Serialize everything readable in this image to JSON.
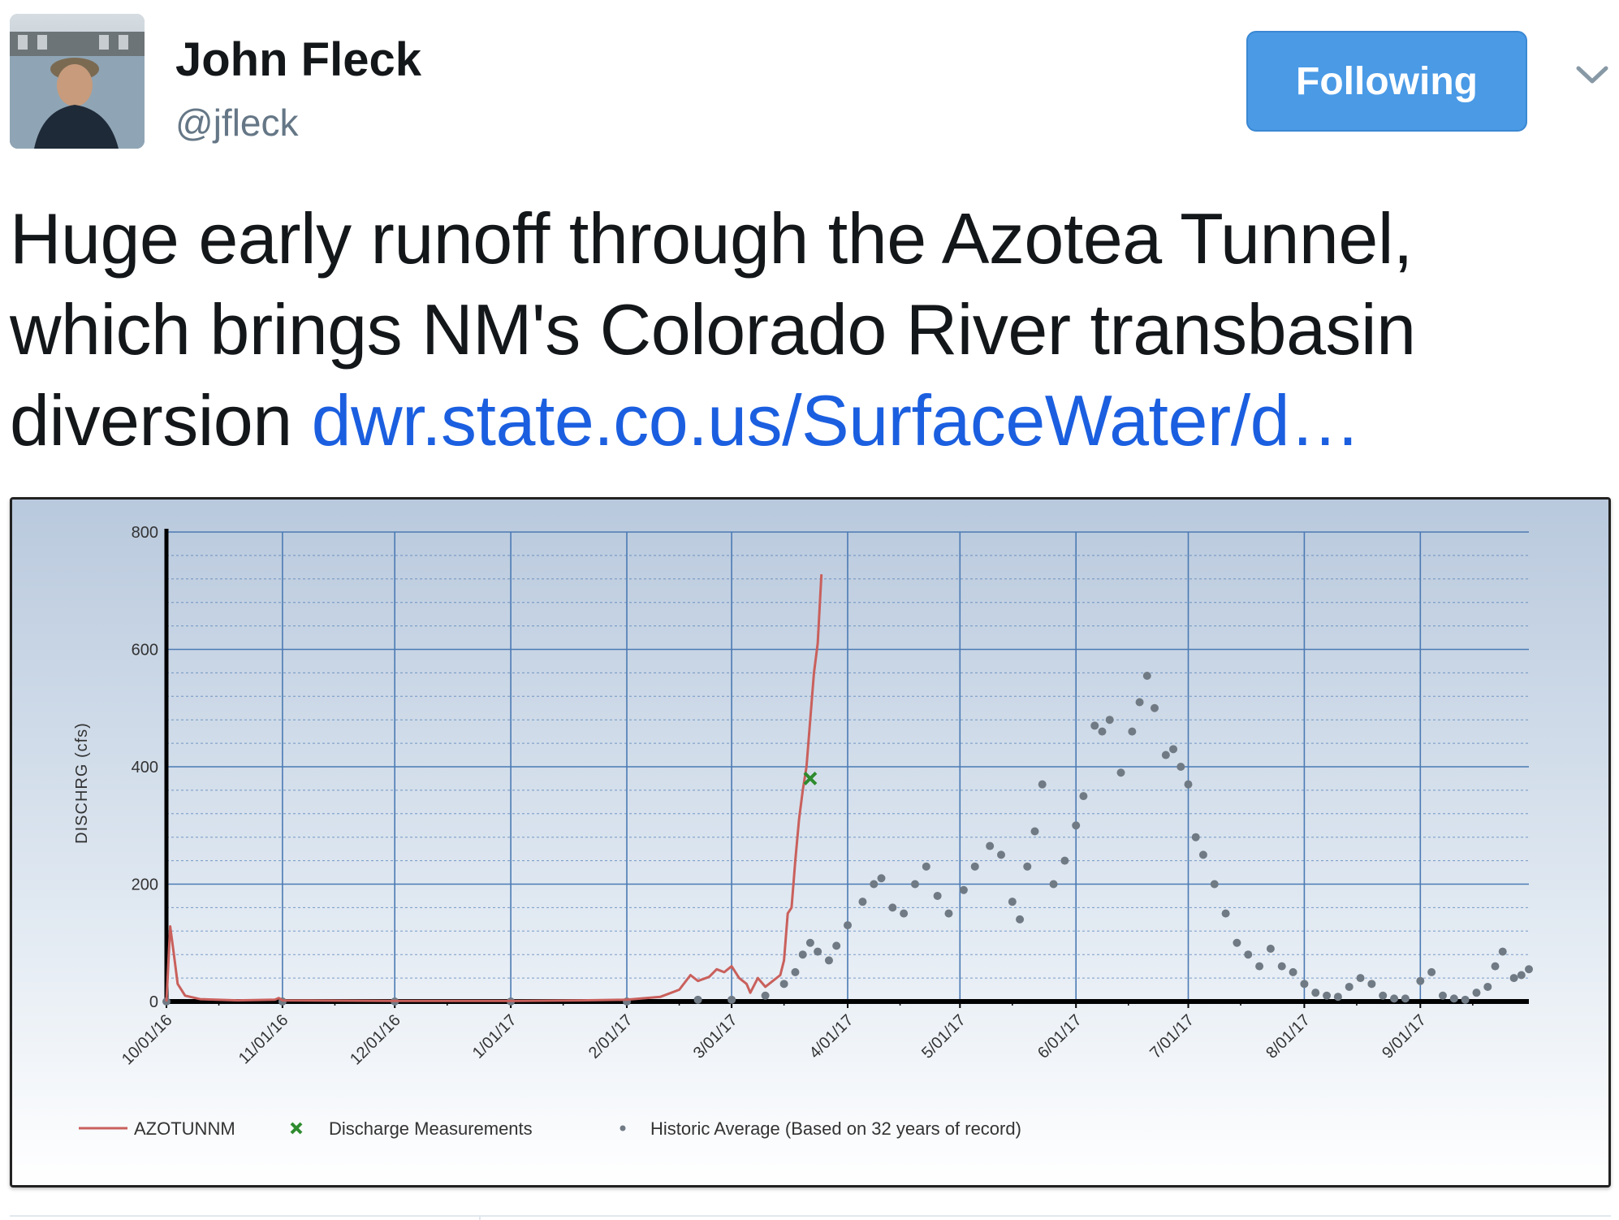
{
  "user": {
    "name": "John Fleck",
    "handle": "@jfleck",
    "avatar_icon": "avatar-photo"
  },
  "follow_button": {
    "label": "Following",
    "color": "#4a9ae6"
  },
  "menu_icon": "chevron-down-icon",
  "tweet": {
    "text": "Huge early runoff through the Azotea Tunnel, which brings NM's Colorado River transbasin diversion ",
    "link_text": "dwr.state.co.us/SurfaceWater/d…",
    "link_color": "#1b5fe0"
  },
  "chart_data": {
    "type": "line",
    "title": "",
    "xlabel": "",
    "ylabel": "DISCHRG (cfs)",
    "ylim": [
      0,
      800
    ],
    "yticks": [
      0,
      200,
      400,
      600,
      800
    ],
    "xlim": [
      "2016-10-01",
      "2017-09-30"
    ],
    "xticks": [
      "10/01/16",
      "11/01/16",
      "12/01/16",
      "1/01/17",
      "2/01/17",
      "3/01/17",
      "4/01/17",
      "5/01/17",
      "6/01/17",
      "7/01/17",
      "8/01/17",
      "9/01/17"
    ],
    "grid": true,
    "legend_position": "bottom",
    "colors": {
      "background_top": "#b9c9dd",
      "background_bottom": "#ffffff",
      "grid": "#4b7ab3",
      "azotunnm": "#c9605c",
      "measurement": "#2e8b2e",
      "historic": "#707a84"
    },
    "series": [
      {
        "name": "AZOTUNNM",
        "type": "line",
        "points": [
          [
            "2016-10-01",
            0
          ],
          [
            "2016-10-02",
            128
          ],
          [
            "2016-10-03",
            80
          ],
          [
            "2016-10-04",
            30
          ],
          [
            "2016-10-06",
            10
          ],
          [
            "2016-10-10",
            4
          ],
          [
            "2016-10-20",
            2
          ],
          [
            "2016-10-30",
            3
          ],
          [
            "2016-10-31",
            6
          ],
          [
            "2016-11-01",
            2
          ],
          [
            "2016-12-01",
            1
          ],
          [
            "2017-01-01",
            1
          ],
          [
            "2017-01-20",
            2
          ],
          [
            "2017-02-01",
            3
          ],
          [
            "2017-02-10",
            8
          ],
          [
            "2017-02-15",
            20
          ],
          [
            "2017-02-18",
            45
          ],
          [
            "2017-02-20",
            35
          ],
          [
            "2017-02-23",
            42
          ],
          [
            "2017-02-25",
            55
          ],
          [
            "2017-02-27",
            50
          ],
          [
            "2017-03-01",
            60
          ],
          [
            "2017-03-03",
            40
          ],
          [
            "2017-03-05",
            30
          ],
          [
            "2017-03-06",
            15
          ],
          [
            "2017-03-08",
            40
          ],
          [
            "2017-03-10",
            25
          ],
          [
            "2017-03-12",
            35
          ],
          [
            "2017-03-14",
            45
          ],
          [
            "2017-03-15",
            70
          ],
          [
            "2017-03-16",
            150
          ],
          [
            "2017-03-17",
            160
          ],
          [
            "2017-03-18",
            240
          ],
          [
            "2017-03-19",
            310
          ],
          [
            "2017-03-20",
            360
          ],
          [
            "2017-03-21",
            400
          ],
          [
            "2017-03-22",
            480
          ],
          [
            "2017-03-23",
            560
          ],
          [
            "2017-03-24",
            610
          ],
          [
            "2017-03-25",
            728
          ]
        ]
      },
      {
        "name": "Discharge Measurements",
        "type": "scatter",
        "points": [
          [
            "2017-03-22",
            380
          ]
        ]
      },
      {
        "name": "Historic Average (Based on 32 years of record)",
        "type": "scatter",
        "points": [
          [
            "2016-10-01",
            0
          ],
          [
            "2016-11-01",
            0
          ],
          [
            "2016-12-01",
            0
          ],
          [
            "2017-01-01",
            0
          ],
          [
            "2017-02-01",
            0
          ],
          [
            "2017-02-20",
            3
          ],
          [
            "2017-03-01",
            3
          ],
          [
            "2017-03-10",
            10
          ],
          [
            "2017-03-15",
            30
          ],
          [
            "2017-03-18",
            50
          ],
          [
            "2017-03-20",
            80
          ],
          [
            "2017-03-22",
            100
          ],
          [
            "2017-03-24",
            85
          ],
          [
            "2017-03-27",
            70
          ],
          [
            "2017-03-29",
            95
          ],
          [
            "2017-04-01",
            130
          ],
          [
            "2017-04-05",
            170
          ],
          [
            "2017-04-08",
            200
          ],
          [
            "2017-04-10",
            210
          ],
          [
            "2017-04-13",
            160
          ],
          [
            "2017-04-16",
            150
          ],
          [
            "2017-04-19",
            200
          ],
          [
            "2017-04-22",
            230
          ],
          [
            "2017-04-25",
            180
          ],
          [
            "2017-04-28",
            150
          ],
          [
            "2017-05-02",
            190
          ],
          [
            "2017-05-05",
            230
          ],
          [
            "2017-05-09",
            265
          ],
          [
            "2017-05-12",
            250
          ],
          [
            "2017-05-15",
            170
          ],
          [
            "2017-05-17",
            140
          ],
          [
            "2017-05-19",
            230
          ],
          [
            "2017-05-21",
            290
          ],
          [
            "2017-05-23",
            370
          ],
          [
            "2017-05-26",
            200
          ],
          [
            "2017-05-29",
            240
          ],
          [
            "2017-06-01",
            300
          ],
          [
            "2017-06-03",
            350
          ],
          [
            "2017-06-06",
            470
          ],
          [
            "2017-06-08",
            460
          ],
          [
            "2017-06-10",
            480
          ],
          [
            "2017-06-13",
            390
          ],
          [
            "2017-06-16",
            460
          ],
          [
            "2017-06-18",
            510
          ],
          [
            "2017-06-20",
            555
          ],
          [
            "2017-06-22",
            500
          ],
          [
            "2017-06-25",
            420
          ],
          [
            "2017-06-27",
            430
          ],
          [
            "2017-06-29",
            400
          ],
          [
            "2017-07-01",
            370
          ],
          [
            "2017-07-03",
            280
          ],
          [
            "2017-07-05",
            250
          ],
          [
            "2017-07-08",
            200
          ],
          [
            "2017-07-11",
            150
          ],
          [
            "2017-07-14",
            100
          ],
          [
            "2017-07-17",
            80
          ],
          [
            "2017-07-20",
            60
          ],
          [
            "2017-07-23",
            90
          ],
          [
            "2017-07-26",
            60
          ],
          [
            "2017-07-29",
            50
          ],
          [
            "2017-08-01",
            30
          ],
          [
            "2017-08-04",
            15
          ],
          [
            "2017-08-07",
            10
          ],
          [
            "2017-08-10",
            8
          ],
          [
            "2017-08-13",
            25
          ],
          [
            "2017-08-16",
            40
          ],
          [
            "2017-08-19",
            30
          ],
          [
            "2017-08-22",
            10
          ],
          [
            "2017-08-25",
            5
          ],
          [
            "2017-08-28",
            5
          ],
          [
            "2017-09-01",
            35
          ],
          [
            "2017-09-04",
            50
          ],
          [
            "2017-09-07",
            10
          ],
          [
            "2017-09-10",
            5
          ],
          [
            "2017-09-13",
            3
          ],
          [
            "2017-09-16",
            15
          ],
          [
            "2017-09-19",
            25
          ],
          [
            "2017-09-21",
            60
          ],
          [
            "2017-09-23",
            85
          ],
          [
            "2017-09-26",
            40
          ],
          [
            "2017-09-28",
            45
          ],
          [
            "2017-09-30",
            55
          ]
        ]
      }
    ]
  }
}
